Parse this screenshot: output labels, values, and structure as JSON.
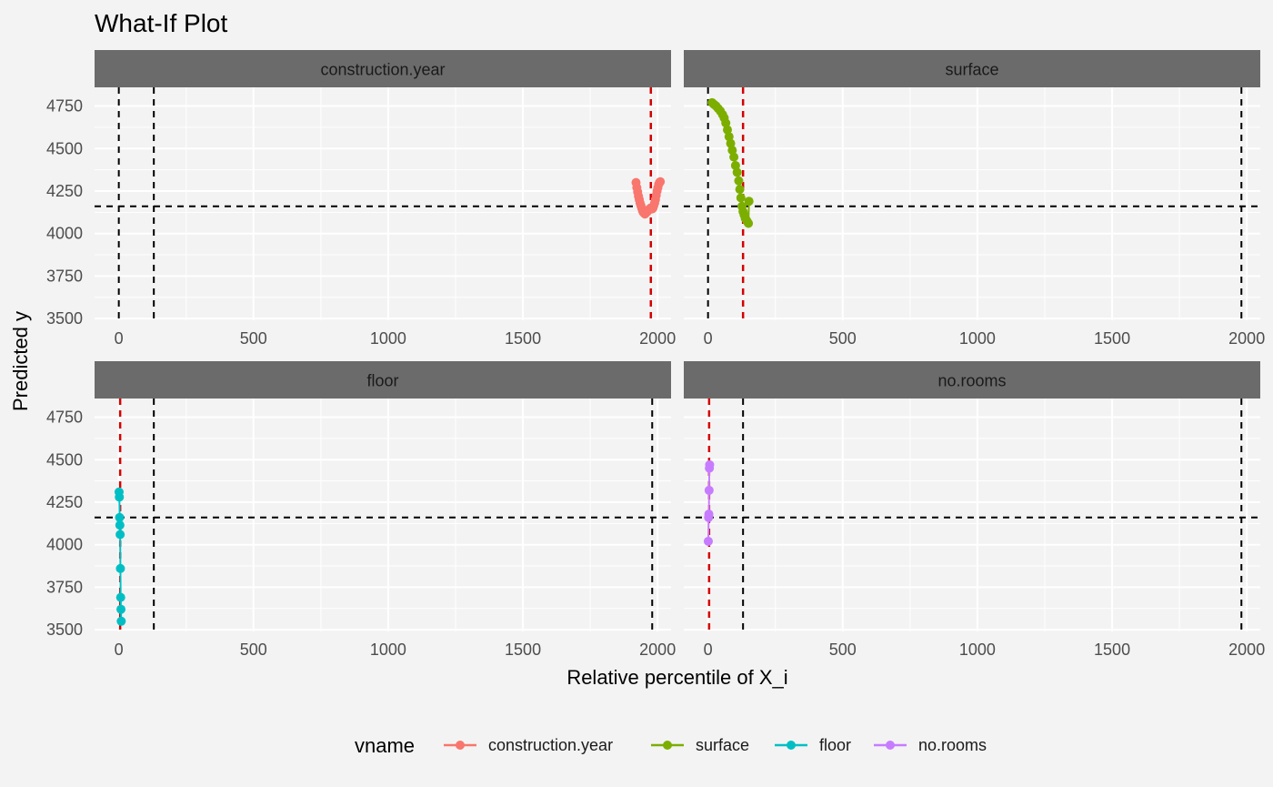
{
  "chart_data": {
    "type": "scatter",
    "title": "What-If Plot",
    "xlabel": "Relative percentile of X_i",
    "ylabel": "Predicted y",
    "xlim": [
      -90,
      2050
    ],
    "ylim": [
      3490,
      4860
    ],
    "x_ticks": [
      0,
      500,
      1000,
      1500,
      2000
    ],
    "y_ticks": [
      3500,
      3750,
      4000,
      4250,
      4500,
      4750
    ],
    "grid": true,
    "legend_position": "bottom",
    "legend_title": "vname",
    "reference_lines": {
      "black_vertical": [
        0,
        130,
        1980
      ],
      "horizontal_y": 4160
    },
    "panels": [
      {
        "strip": "construction.year",
        "series": "construction.year",
        "color": "#F8766D",
        "observed_x": 1975,
        "black_vlines": [
          0,
          130
        ],
        "points": [
          [
            1920,
            4300
          ],
          [
            1923,
            4270
          ],
          [
            1926,
            4245
          ],
          [
            1929,
            4220
          ],
          [
            1932,
            4200
          ],
          [
            1935,
            4180
          ],
          [
            1938,
            4165
          ],
          [
            1941,
            4150
          ],
          [
            1944,
            4135
          ],
          [
            1947,
            4125
          ],
          [
            1950,
            4120
          ],
          [
            1953,
            4115
          ],
          [
            1956,
            4120
          ],
          [
            1959,
            4125
          ],
          [
            1962,
            4130
          ],
          [
            1965,
            4135
          ],
          [
            1968,
            4140
          ],
          [
            1971,
            4145
          ],
          [
            1974,
            4150
          ],
          [
            1977,
            4150
          ],
          [
            1980,
            4145
          ],
          [
            1983,
            4150
          ],
          [
            1986,
            4165
          ],
          [
            1989,
            4180
          ],
          [
            1992,
            4200
          ],
          [
            1995,
            4225
          ],
          [
            1998,
            4250
          ],
          [
            2001,
            4270
          ],
          [
            2004,
            4290
          ],
          [
            2007,
            4300
          ],
          [
            2010,
            4305
          ]
        ]
      },
      {
        "strip": "surface",
        "series": "surface",
        "color": "#7CAE00",
        "observed_x": 130,
        "black_vlines": [
          0,
          1980
        ],
        "points": [
          [
            15,
            4770
          ],
          [
            22,
            4760
          ],
          [
            30,
            4750
          ],
          [
            38,
            4735
          ],
          [
            46,
            4720
          ],
          [
            54,
            4700
          ],
          [
            60,
            4680
          ],
          [
            66,
            4650
          ],
          [
            72,
            4610
          ],
          [
            78,
            4570
          ],
          [
            84,
            4530
          ],
          [
            90,
            4490
          ],
          [
            96,
            4450
          ],
          [
            102,
            4400
          ],
          [
            108,
            4360
          ],
          [
            114,
            4310
          ],
          [
            118,
            4260
          ],
          [
            122,
            4210
          ],
          [
            126,
            4160
          ],
          [
            130,
            4130
          ],
          [
            134,
            4110
          ],
          [
            138,
            4090
          ],
          [
            142,
            4080
          ],
          [
            146,
            4070
          ],
          [
            150,
            4060
          ],
          [
            152,
            4190
          ]
        ]
      },
      {
        "strip": "floor",
        "series": "floor",
        "color": "#00BFC4",
        "observed_x": 5,
        "black_vlines": [
          130,
          1980
        ],
        "points": [
          [
            1,
            4310
          ],
          [
            2,
            4280
          ],
          [
            3,
            4160
          ],
          [
            4,
            4115
          ],
          [
            5,
            4060
          ],
          [
            6,
            3860
          ],
          [
            7,
            3690
          ],
          [
            8,
            3620
          ],
          [
            9,
            3550
          ]
        ]
      },
      {
        "strip": "no.rooms",
        "series": "no.rooms",
        "color": "#C77CFF",
        "observed_x": 4,
        "black_vlines": [
          130,
          1980
        ],
        "points": [
          [
            1,
            4020
          ],
          [
            2,
            4160
          ],
          [
            3,
            4180
          ],
          [
            4,
            4320
          ],
          [
            5,
            4450
          ],
          [
            6,
            4470
          ]
        ]
      }
    ],
    "legend": [
      {
        "label": "construction.year",
        "color": "#F8766D"
      },
      {
        "label": "surface",
        "color": "#7CAE00"
      },
      {
        "label": "floor",
        "color": "#00BFC4"
      },
      {
        "label": "no.rooms",
        "color": "#C77CFF"
      }
    ]
  }
}
